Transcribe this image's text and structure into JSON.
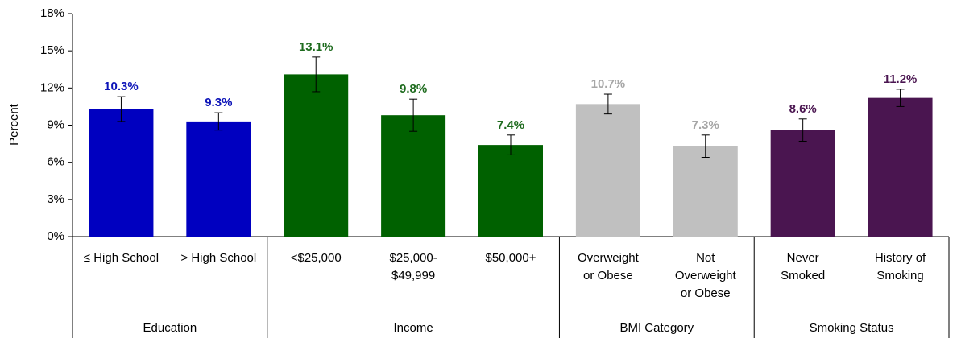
{
  "chart_data": {
    "type": "bar",
    "y_label": "Percent",
    "ylim": [
      0,
      18
    ],
    "yticks": [
      {
        "value": 0,
        "label": "0%"
      },
      {
        "value": 3,
        "label": "3%"
      },
      {
        "value": 6,
        "label": "6%"
      },
      {
        "value": 9,
        "label": "9%"
      },
      {
        "value": 12,
        "label": "12%"
      },
      {
        "value": 15,
        "label": "15%"
      },
      {
        "value": 18,
        "label": "18%"
      }
    ],
    "groups": [
      {
        "label": "Education",
        "color": "#0000c0",
        "label_color": "#0d14b8",
        "categories": [
          [
            "≤ High School"
          ],
          [
            "> High School"
          ]
        ],
        "values": [
          10.3,
          9.3
        ],
        "value_labels": [
          "10.3%",
          "9.3%"
        ],
        "errors": [
          1.0,
          0.7
        ]
      },
      {
        "label": "Income",
        "color": "#006100",
        "label_color": "#1e6b1e",
        "categories": [
          [
            "<$25,000"
          ],
          [
            "$25,000-",
            "$49,999"
          ],
          [
            "$50,000+"
          ]
        ],
        "values": [
          13.1,
          9.8,
          7.4
        ],
        "value_labels": [
          "13.1%",
          "9.8%",
          "7.4%"
        ],
        "errors": [
          1.4,
          1.3,
          0.8
        ]
      },
      {
        "label": "BMI Category",
        "color": "#c0c0c0",
        "label_color": "#a6a6a6",
        "categories": [
          [
            "Overweight",
            "or Obese"
          ],
          [
            "Not",
            "Overweight",
            "or Obese"
          ]
        ],
        "values": [
          10.7,
          7.3
        ],
        "value_labels": [
          "10.7%",
          "7.3%"
        ],
        "errors": [
          0.8,
          0.9
        ]
      },
      {
        "label": "Smoking Status",
        "color": "#4a1550",
        "label_color": "#4a1550",
        "categories": [
          [
            "Never",
            "Smoked"
          ],
          [
            "History of",
            "Smoking"
          ]
        ],
        "values": [
          8.6,
          11.2
        ],
        "value_labels": [
          "8.6%",
          "11.2%"
        ],
        "errors": [
          0.9,
          0.7
        ]
      }
    ]
  }
}
